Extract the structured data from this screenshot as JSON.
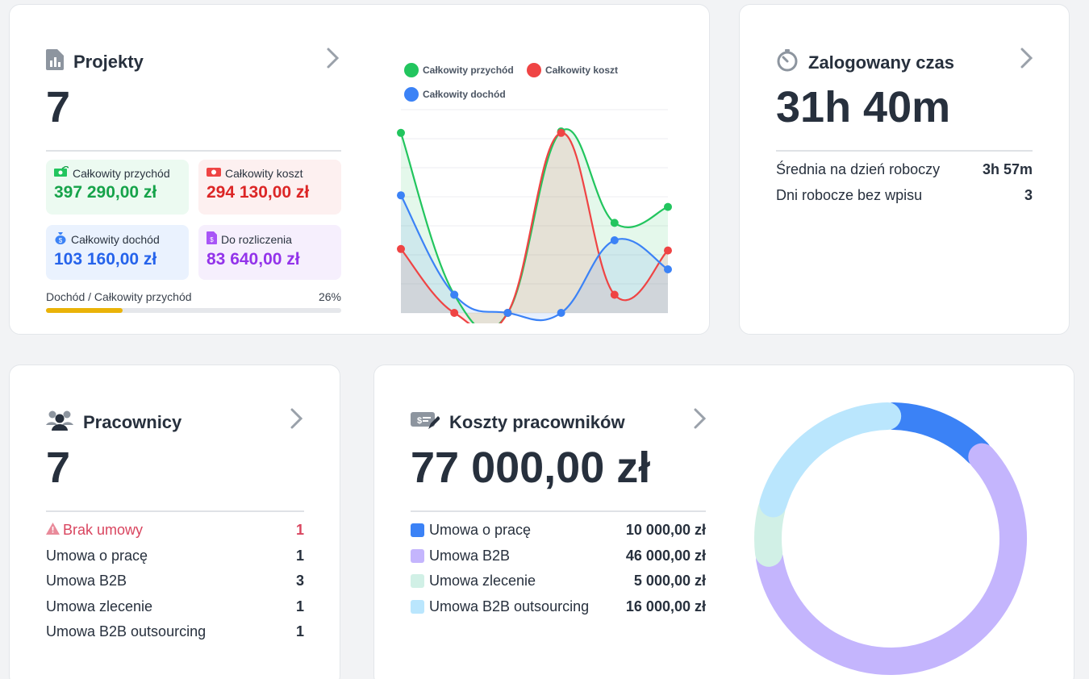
{
  "projects": {
    "title": "Projekty",
    "count": "7",
    "tiles": [
      {
        "label": "Całkowity przychód",
        "value": "397 290,00 zł"
      },
      {
        "label": "Całkowity koszt",
        "value": "294 130,00 zł"
      },
      {
        "label": "Całkowity dochód",
        "value": "103 160,00 zł"
      },
      {
        "label": "Do rozliczenia",
        "value": "83 640,00 zł"
      }
    ],
    "progress_label": "Dochód / Całkowity przychód",
    "progress_value": "26%",
    "progress_fraction": 0.26
  },
  "chart_data": {
    "type": "area",
    "legend_position": "top",
    "grid": true,
    "x": [
      1,
      2,
      3,
      4,
      5,
      6
    ],
    "ylim": [
      0,
      140000
    ],
    "series": [
      {
        "name": "Całkowity przychód",
        "color": "#22c55e",
        "values": [
          124000,
          12500,
          0,
          125000,
          62000,
          73000
        ]
      },
      {
        "name": "Całkowity koszt",
        "color": "#ef4444",
        "values": [
          44000,
          0,
          0,
          124000,
          12500,
          43000
        ]
      },
      {
        "name": "Całkowity dochód",
        "color": "#3b82f6",
        "values": [
          81000,
          12500,
          0,
          0,
          50000,
          30000
        ]
      }
    ]
  },
  "time": {
    "title": "Zalogowany czas",
    "value": "31h 40m",
    "rows": [
      {
        "label": "Średnia na dzień roboczy",
        "value": "3h 57m"
      },
      {
        "label": "Dni robocze bez wpisu",
        "value": "3"
      }
    ]
  },
  "employees": {
    "title": "Pracownicy",
    "count": "7",
    "warning": {
      "label": "Brak umowy",
      "value": "1"
    },
    "rows": [
      {
        "label": "Umowa o pracę",
        "value": "1"
      },
      {
        "label": "Umowa B2B",
        "value": "3"
      },
      {
        "label": "Umowa zlecenie",
        "value": "1"
      },
      {
        "label": "Umowa B2B outsourcing",
        "value": "1"
      }
    ]
  },
  "costs": {
    "title": "Koszty pracowników",
    "total": "77 000,00 zł",
    "items": [
      {
        "label": "Umowa o pracę",
        "value": "10 000,00 zł",
        "amount": 10000,
        "color": "#3b82f6"
      },
      {
        "label": "Umowa B2B",
        "value": "46 000,00 zł",
        "amount": 46000,
        "color": "#c4b5fd"
      },
      {
        "label": "Umowa zlecenie",
        "value": "5 000,00 zł",
        "amount": 5000,
        "color": "#d1f0e6"
      },
      {
        "label": "Umowa B2B outsourcing",
        "value": "16 000,00 zł",
        "amount": 16000,
        "color": "#bae6fd"
      }
    ]
  },
  "colors": {
    "green": "#16a34a",
    "red": "#dc2626",
    "blue": "#2563eb",
    "purple": "#9333ea",
    "warn": "#d9455f",
    "progress": "#eab308"
  }
}
